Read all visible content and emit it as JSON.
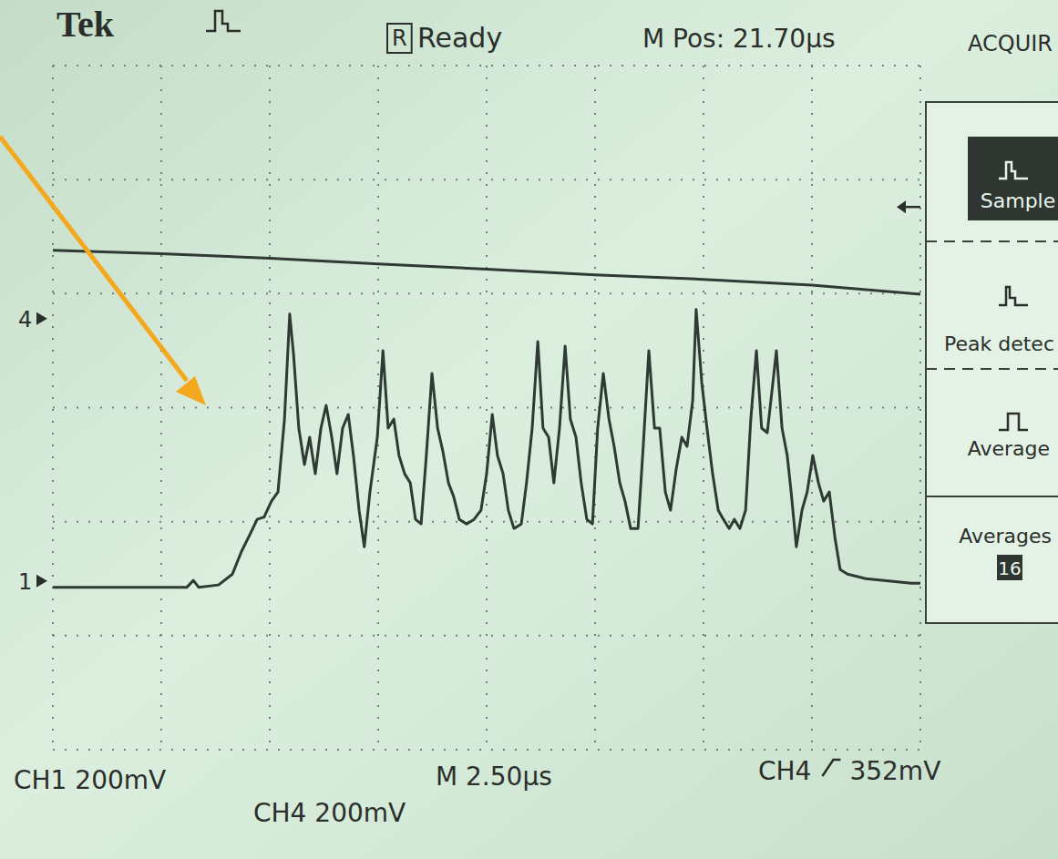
{
  "chart_data": {
    "type": "line",
    "annotations": [
      "Tek",
      "R",
      "Ready",
      "M Pos: 21.70µs",
      "ACQUIR",
      "Sample",
      "Peak detec",
      "Average",
      "Averages",
      "16",
      "CH1 200mV",
      "CH4 200mV",
      "M 2.50µs",
      "CH4",
      "352mV"
    ],
    "xlim": [
      0,
      20
    ],
    "xticks": [
      0,
      2.5,
      5,
      7.5,
      10,
      12.5,
      15,
      17.5,
      20
    ],
    "ylim": [
      -600,
      600
    ],
    "yticks": [
      -600,
      -400,
      -200,
      0,
      200,
      400,
      600
    ],
    "grid": true,
    "tick_labels": false,
    "trigger_level": 352,
    "series": [
      {
        "name": "4",
        "color": "#2e3a33",
        "reference": 156,
        "x": [
          0,
          2.5,
          5,
          7.5,
          10,
          12.5,
          15,
          17.5,
          20
        ],
        "values": [
          276,
          270,
          262,
          252,
          243,
          233,
          225,
          215,
          199
        ]
      },
      {
        "name": "1",
        "color": "#2e3a33",
        "reference": -304,
        "x": [
          0,
          1.93,
          3.09,
          3.24,
          3.36,
          3.82,
          4.14,
          4.35,
          4.56,
          4.71,
          4.87,
          5.04,
          5.19,
          5.34,
          5.46,
          5.55,
          5.67,
          5.8,
          5.92,
          6.05,
          6.18,
          6.3,
          6.43,
          6.55,
          6.68,
          6.81,
          6.93,
          7.06,
          7.18,
          7.31,
          7.48,
          7.61,
          7.73,
          7.86,
          7.98,
          8.11,
          8.24,
          8.36,
          8.49,
          8.61,
          8.74,
          8.87,
          8.99,
          9.12,
          9.24,
          9.37,
          9.54,
          9.71,
          9.87,
          10,
          10.13,
          10.25,
          10.38,
          10.5,
          10.63,
          10.8,
          10.92,
          11.05,
          11.18,
          11.3,
          11.43,
          11.55,
          11.68,
          11.81,
          11.93,
          12.06,
          12.18,
          12.31,
          12.44,
          12.56,
          12.69,
          12.82,
          12.94,
          13.07,
          13.19,
          13.32,
          13.49,
          13.61,
          13.74,
          13.87,
          13.99,
          14.12,
          14.24,
          14.37,
          14.5,
          14.62,
          14.75,
          14.83,
          14.96,
          15.08,
          15.21,
          15.34,
          15.46,
          15.59,
          15.71,
          15.84,
          15.97,
          16.09,
          16.22,
          16.34,
          16.47,
          16.6,
          16.68,
          16.81,
          16.93,
          17.02,
          17.14,
          17.27,
          17.39,
          17.52,
          17.65,
          17.77,
          17.9,
          18.03,
          18.15,
          18.32,
          18.74,
          19.79,
          20
        ],
        "values": [
          -315,
          -315,
          -315,
          -303,
          -315,
          -311,
          -292,
          -252,
          -220,
          -196,
          -192,
          -164,
          -148,
          -20,
          164,
          92,
          -36,
          -100,
          -52,
          -116,
          -36,
          4,
          -52,
          -116,
          -36,
          -12,
          -84,
          -180,
          -244,
          -148,
          -52,
          100,
          -36,
          -20,
          -84,
          -116,
          -132,
          -196,
          -204,
          -84,
          60,
          -36,
          -76,
          -132,
          -156,
          -196,
          -204,
          -196,
          -180,
          -116,
          -12,
          -84,
          -116,
          -180,
          -212,
          -204,
          -132,
          -36,
          116,
          -36,
          -52,
          -132,
          -36,
          108,
          -20,
          -52,
          -132,
          -196,
          -204,
          -36,
          60,
          -20,
          -68,
          -132,
          -164,
          -212,
          -212,
          -68,
          100,
          -36,
          -36,
          -148,
          -180,
          -108,
          -52,
          -68,
          12,
          172,
          44,
          -36,
          -116,
          -180,
          -196,
          -212,
          -196,
          -212,
          -180,
          -20,
          100,
          -36,
          -44,
          44,
          100,
          -36,
          -84,
          -148,
          -244,
          -180,
          -148,
          -84,
          -132,
          -164,
          -148,
          -228,
          -284,
          -292,
          -300,
          -308,
          -308
        ]
      }
    ]
  }
}
